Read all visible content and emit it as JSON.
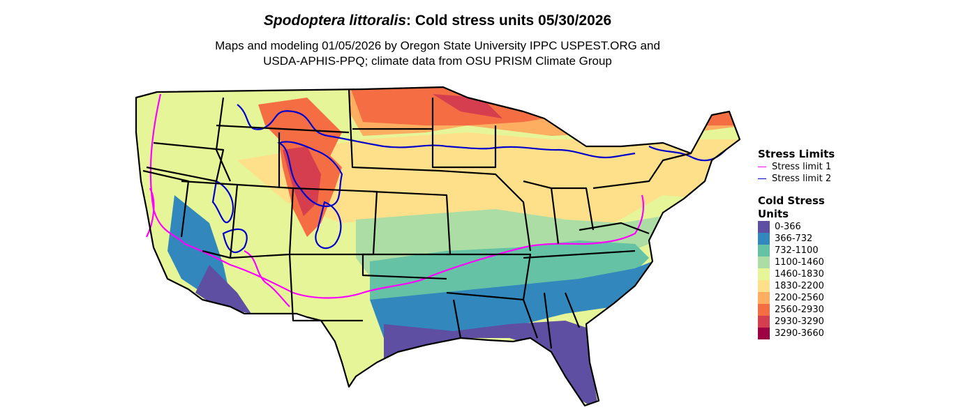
{
  "title": {
    "species": "Spodoptera littoralis",
    "rest": ": Cold stress units 05/30/2026"
  },
  "subtitle": {
    "line1": "Maps and modeling 01/05/2026 by Oregon State University IPPC USPEST.ORG and",
    "line2": "USDA-APHIS-PPQ; climate data from OSU PRISM Climate Group"
  },
  "legend": {
    "limits_title": "Stress Limits",
    "limits": [
      {
        "label": "Stress limit 1",
        "color": "#ff00ff"
      },
      {
        "label": "Stress limit 2",
        "color": "#0000cc"
      }
    ],
    "units_title": "Cold Stress Units",
    "units": [
      {
        "label": "0-366",
        "color": "#5e4fa2"
      },
      {
        "label": "366-732",
        "color": "#3288bd"
      },
      {
        "label": "732-1100",
        "color": "#66c2a5"
      },
      {
        "label": "1100-1460",
        "color": "#abdda4"
      },
      {
        "label": "1460-1830",
        "color": "#e6f598"
      },
      {
        "label": "1830-2200",
        "color": "#fee08b"
      },
      {
        "label": "2200-2560",
        "color": "#fdae61"
      },
      {
        "label": "2560-2930",
        "color": "#f46d43"
      },
      {
        "label": "2930-3290",
        "color": "#d53e4f"
      },
      {
        "label": "3290-3660",
        "color": "#9e0142"
      }
    ]
  }
}
